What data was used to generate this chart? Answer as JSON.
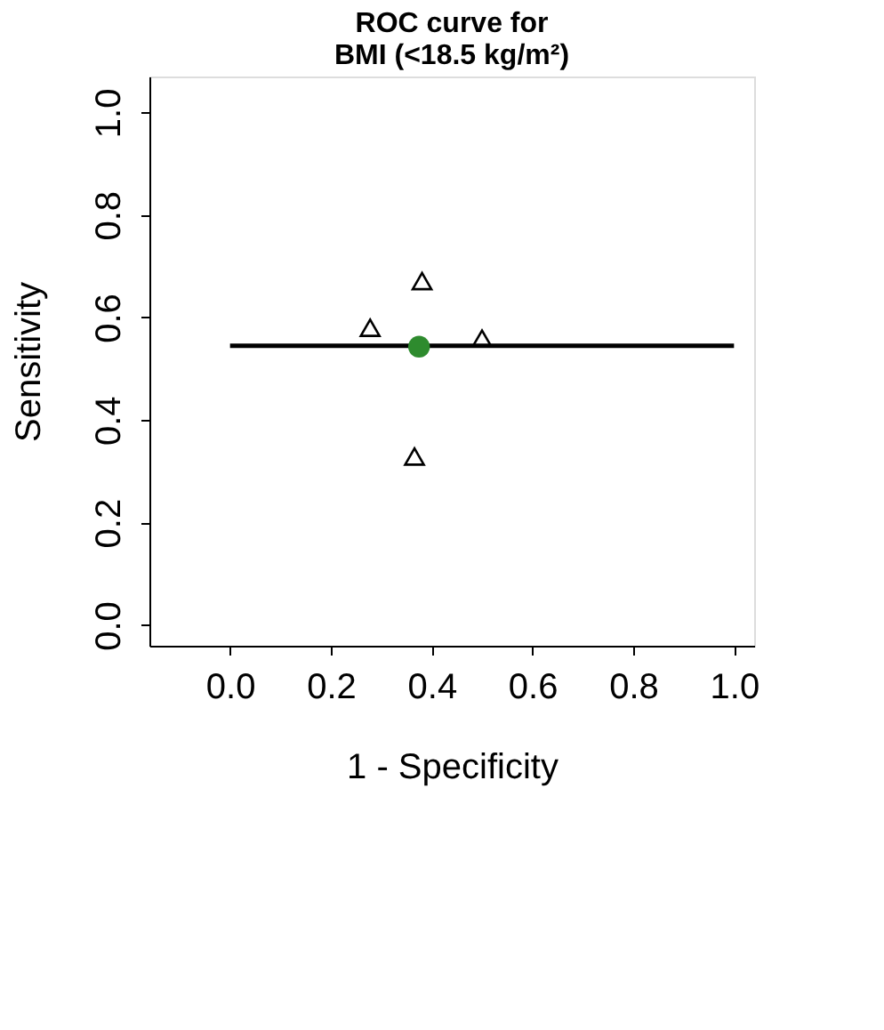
{
  "chart_data": {
    "type": "scatter",
    "title": [
      "ROC curve for",
      "BMI (<18.5 kg/m²)"
    ],
    "xlabel": "1 - Specificity",
    "ylabel": "Sensitivity",
    "xlim": [
      -0.16,
      1.04
    ],
    "ylim": [
      -0.04,
      1.07
    ],
    "xticks": [
      {
        "value": 0,
        "label": "0.0"
      },
      0.2,
      0.4,
      0.6,
      0.8,
      {
        "value": 1,
        "label": "1.0"
      }
    ],
    "yticks": [
      {
        "value": 0,
        "label": "0.0"
      },
      0.2,
      0.4,
      0.6,
      0.8,
      {
        "value": 1,
        "label": "1.0"
      }
    ],
    "grid": false,
    "series": [
      {
        "type": "line",
        "color": "#000000",
        "x": [
          0.0,
          1.0
        ],
        "values": [
          0.545,
          0.545
        ],
        "line_style": "solid",
        "marker": "none"
      },
      {
        "color": "#000000",
        "x": [
          0.278,
          0.381,
          0.5,
          0.366
        ],
        "values": [
          0.58,
          0.671,
          0.559,
          0.329
        ],
        "marker": "triangle"
      },
      {
        "color": "#2e8b2e",
        "x": [
          0.375
        ],
        "values": [
          0.543
        ],
        "marker": "circle"
      }
    ]
  }
}
